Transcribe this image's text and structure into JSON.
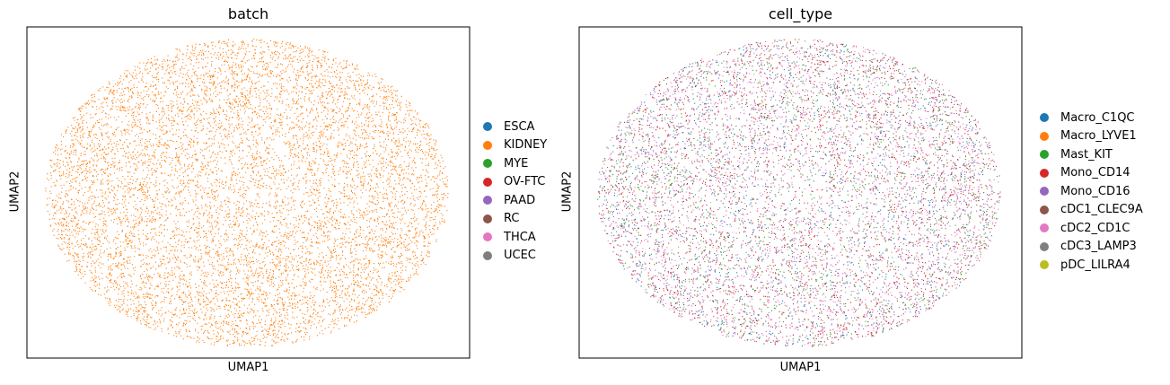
{
  "chart_data": [
    {
      "type": "scatter",
      "title": "batch",
      "xlabel": "UMAP1",
      "ylabel": "UMAP2",
      "grid": false,
      "legend_position": "right",
      "legend": [
        {
          "label": "ESCA",
          "color": "#1f77b4"
        },
        {
          "label": "KIDNEY",
          "color": "#ff7f0e"
        },
        {
          "label": "MYE",
          "color": "#2ca02c"
        },
        {
          "label": "OV-FTC",
          "color": "#d62728"
        },
        {
          "label": "PAAD",
          "color": "#9467bd"
        },
        {
          "label": "RC",
          "color": "#8c564b"
        },
        {
          "label": "THCA",
          "color": "#e377c2"
        },
        {
          "label": "UCEC",
          "color": "#7f7f7f"
        }
      ],
      "point_colors": [
        "#ff7f0e"
      ]
    },
    {
      "type": "scatter",
      "title": "cell_type",
      "xlabel": "UMAP1",
      "ylabel": "UMAP2",
      "grid": false,
      "legend_position": "right",
      "legend": [
        {
          "label": "Macro_C1QC",
          "color": "#1f77b4"
        },
        {
          "label": "Macro_LYVE1",
          "color": "#ff7f0e"
        },
        {
          "label": "Mast_KIT",
          "color": "#2ca02c"
        },
        {
          "label": "Mono_CD14",
          "color": "#d62728"
        },
        {
          "label": "Mono_CD16",
          "color": "#9467bd"
        },
        {
          "label": "cDC1_CLEC9A",
          "color": "#8c564b"
        },
        {
          "label": "cDC2_CD1C",
          "color": "#e377c2"
        },
        {
          "label": "cDC3_LAMP3",
          "color": "#7f7f7f"
        },
        {
          "label": "pDC_LILRA4",
          "color": "#bcbd22"
        }
      ],
      "point_colors": [
        "#d62728",
        "#9467bd",
        "#e377c2",
        "#2ca02c",
        "#1f77b4",
        "#8c564b",
        "#d62728",
        "#e377c2"
      ]
    }
  ]
}
